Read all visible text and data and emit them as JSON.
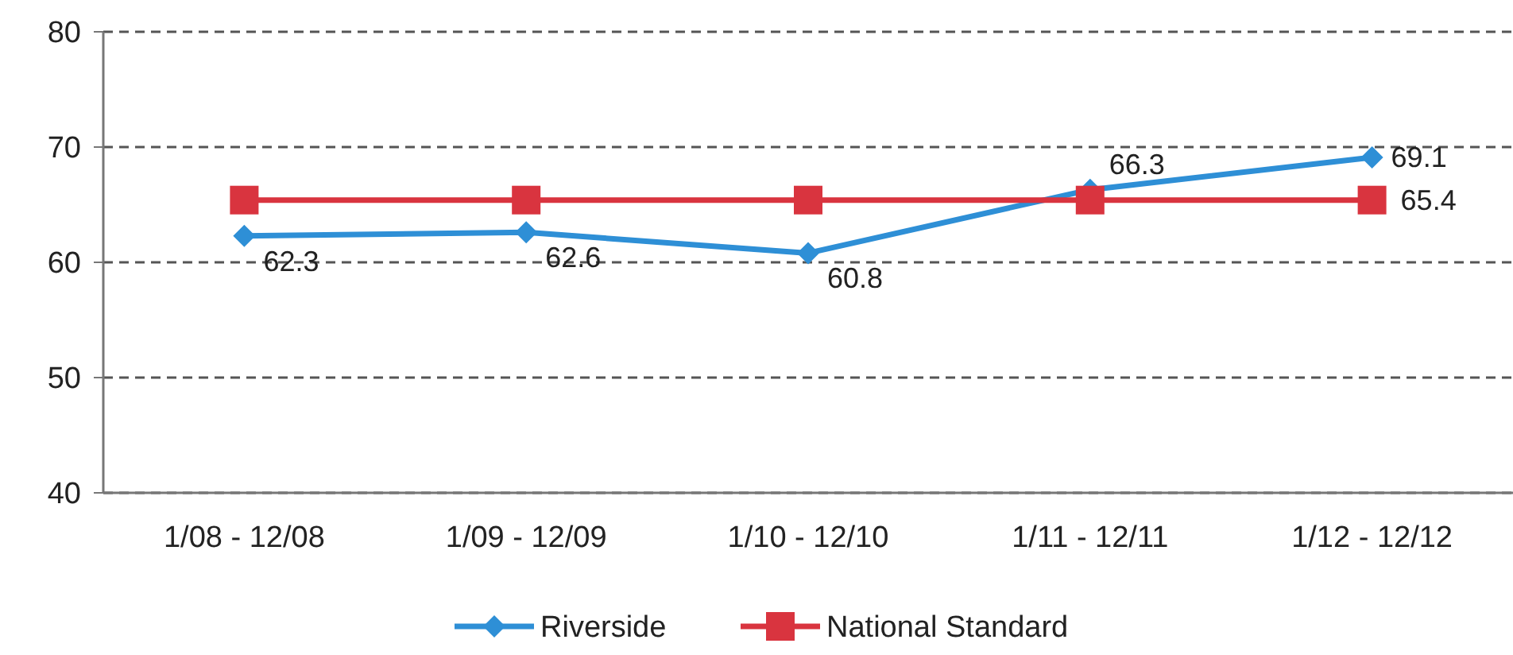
{
  "chart_data": {
    "type": "line",
    "categories": [
      "1/08 - 12/08",
      "1/09 - 12/09",
      "1/10 - 12/10",
      "1/11 - 12/11",
      "1/12 - 12/12"
    ],
    "series": [
      {
        "name": "Riverside",
        "color": "#2e8fd6",
        "marker": "diamond",
        "values": [
          62.3,
          62.6,
          60.8,
          66.3,
          69.1
        ],
        "value_labels": [
          "62.3",
          "62.6",
          "60.8",
          "66.3",
          "69.1"
        ]
      },
      {
        "name": "National Standard",
        "color": "#d9343f",
        "marker": "square",
        "values": [
          65.4,
          65.4,
          65.4,
          65.4,
          65.4
        ],
        "value_labels": [
          null,
          null,
          null,
          null,
          "65.4"
        ]
      }
    ],
    "ylim": [
      40,
      80
    ],
    "yticks": [
      40,
      50,
      60,
      70,
      80
    ],
    "grid": "y",
    "legend": "bottom"
  }
}
